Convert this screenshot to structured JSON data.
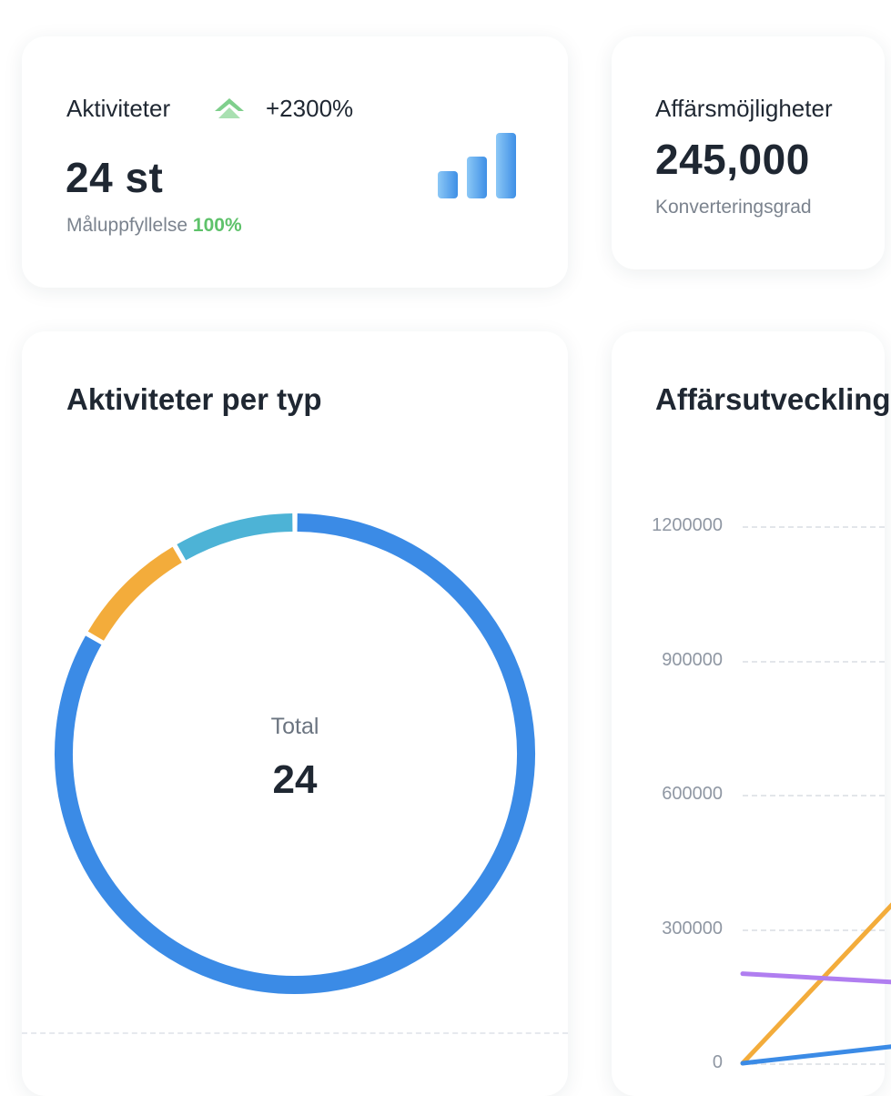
{
  "kpis": {
    "activities": {
      "title": "Aktiviteter",
      "trend": "+2300%",
      "value": "24 st",
      "sub_label": "Måluppfyllelse",
      "sub_value": "100%",
      "trend_color": "#5ec26a",
      "icon": "signal-bars-icon"
    },
    "opportunities": {
      "title": "Affärsmöjligheter",
      "value": "245,000",
      "sub_label": "Konverteringsgrad"
    }
  },
  "activities_by_type": {
    "title": "Aktiviteter per typ",
    "total_label": "Total",
    "total_value": "24",
    "chart_data": {
      "type": "pie",
      "slices": [
        {
          "value": 20,
          "color": "#3b8be6"
        },
        {
          "value": 2,
          "color": "#f3ac3b"
        },
        {
          "value": 2,
          "color": "#4db3d6"
        }
      ]
    }
  },
  "business_development": {
    "title": "Affärsutveckling",
    "chart_data": {
      "type": "line",
      "ylim": [
        0,
        1200000
      ],
      "y_ticks": [
        "1200000",
        "900000",
        "600000",
        "300000",
        "0"
      ],
      "series": [
        {
          "color": "#f3ac3b",
          "values": [
            0,
            380000
          ]
        },
        {
          "color": "#b07ef0",
          "values": [
            200000,
            180000
          ]
        },
        {
          "color": "#3b8be6",
          "values": [
            0,
            40000
          ]
        }
      ]
    }
  }
}
